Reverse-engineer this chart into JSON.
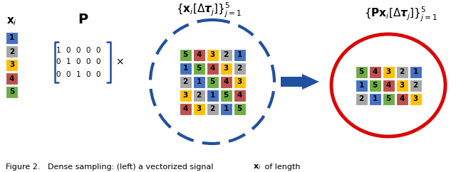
{
  "bg_color": "#ffffff",
  "colors": {
    "1": "#4472C4",
    "2": "#A6A6A6",
    "3": "#FFC000",
    "4": "#C0504D",
    "5": "#70AD47"
  },
  "xi_label": "$\\mathbf{x}_i$",
  "P_label": "$\\mathbf{P}$",
  "xi_values": [
    1,
    2,
    3,
    4,
    5
  ],
  "matrix": [
    [
      1,
      0,
      0,
      0,
      0
    ],
    [
      0,
      1,
      0,
      0,
      0
    ],
    [
      0,
      0,
      1,
      0,
      0
    ]
  ],
  "circ_label": "$\\{\\mathbf{x}_i[\\Delta\\boldsymbol{\\tau}_j]\\}_{j=1}^{5}$",
  "circ_matrix": [
    [
      5,
      4,
      3,
      2,
      1
    ],
    [
      1,
      5,
      4,
      3,
      2
    ],
    [
      2,
      1,
      5,
      4,
      3
    ],
    [
      3,
      2,
      1,
      5,
      4
    ],
    [
      4,
      3,
      2,
      1,
      5
    ]
  ],
  "result_label": "$\\{\\mathbf{P}\\mathbf{x}_i[\\Delta\\boldsymbol{\\tau}_j]\\}_{j=1}^{5}$",
  "result_matrix": [
    [
      5,
      4,
      3,
      2,
      1
    ],
    [
      1,
      5,
      4,
      3,
      2
    ],
    [
      2,
      1,
      5,
      4,
      3
    ]
  ],
  "blue_circle_color": "#2050A0",
  "red_circle_color": "#DD0000",
  "arrow_color": "#2050A0",
  "caption": "Figure 2.   Dense sampling: (left) a vectorized signal $\\mathbf{x}_i$ of length"
}
